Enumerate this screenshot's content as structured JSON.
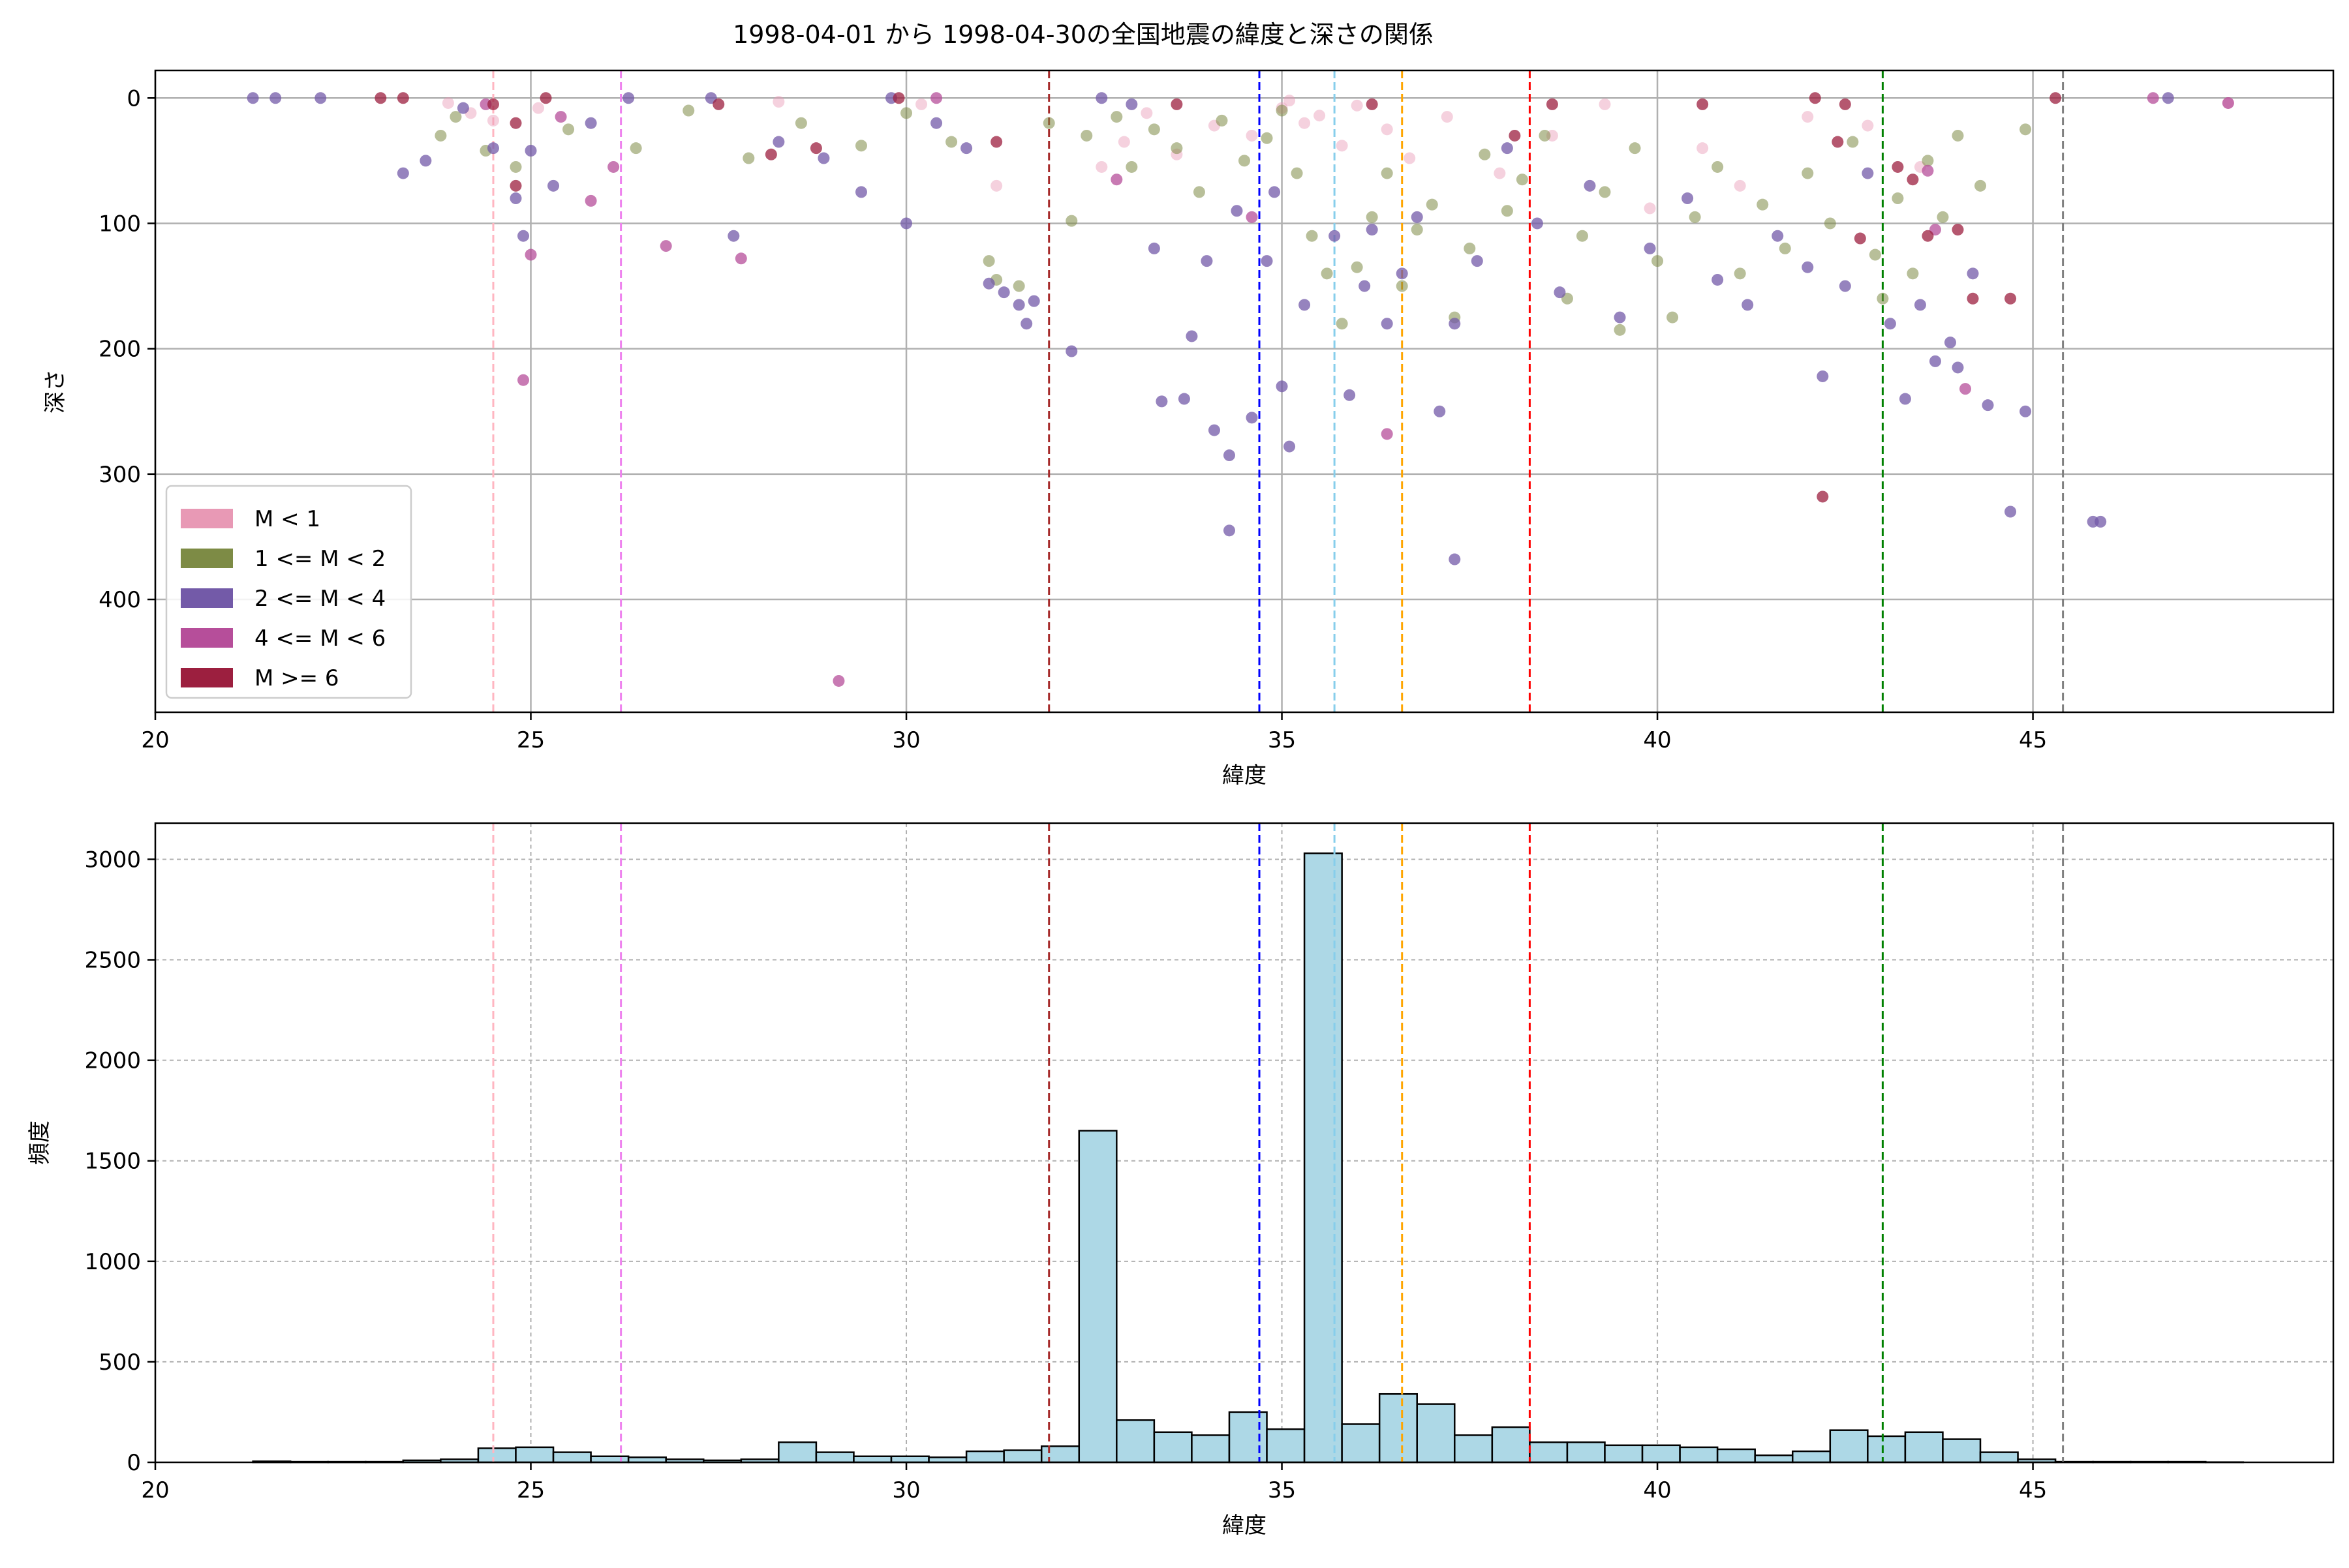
{
  "chart_data": [
    {
      "type": "scatter",
      "title": "1998-04-01 から 1998-04-30の全国地震の緯度と深さの関係",
      "xlabel": "緯度",
      "ylabel": "深さ",
      "xlim": [
        20,
        49
      ],
      "ylim": [
        490,
        -22
      ],
      "y_inverted": true,
      "grid": true,
      "legend_placement": "lower-left",
      "x_ticks": [
        20,
        25,
        30,
        35,
        40,
        45
      ],
      "y_ticks": [
        0,
        100,
        200,
        300,
        400
      ],
      "legend": [
        {
          "label": "M < 1",
          "color": "#e899b5"
        },
        {
          "label": "1 <= M < 2",
          "color": "#7d8b45"
        },
        {
          "label": "2 <= M < 4",
          "color": "#735aa8"
        },
        {
          "label": "4 <= M < 6",
          "color": "#b64e9a"
        },
        {
          "label": "M >= 6",
          "color": "#9c1f3f"
        }
      ],
      "vlines": [
        {
          "x": 24.5,
          "color": "#ffb6c1"
        },
        {
          "x": 26.2,
          "color": "#ee82ee"
        },
        {
          "x": 31.9,
          "color": "#a52a2a"
        },
        {
          "x": 34.7,
          "color": "#0000ff"
        },
        {
          "x": 35.7,
          "color": "#87ceeb"
        },
        {
          "x": 36.6,
          "color": "#ffa500"
        },
        {
          "x": 38.3,
          "color": "#ff0000"
        },
        {
          "x": 43.0,
          "color": "#008000"
        },
        {
          "x": 45.4,
          "color": "#808080"
        }
      ],
      "series": [
        {
          "name": "M < 1",
          "color": "#e899b5",
          "points": [
            [
              23.9,
              4
            ],
            [
              24.2,
              12
            ],
            [
              24.5,
              18
            ],
            [
              25.1,
              8
            ],
            [
              28.3,
              3
            ],
            [
              30.2,
              5
            ],
            [
              31.2,
              70
            ],
            [
              32.6,
              55
            ],
            [
              32.9,
              35
            ],
            [
              33.2,
              12
            ],
            [
              33.6,
              45
            ],
            [
              34.1,
              22
            ],
            [
              34.6,
              30
            ],
            [
              35.0,
              8
            ],
            [
              35.1,
              2
            ],
            [
              35.3,
              20
            ],
            [
              35.5,
              14
            ],
            [
              35.8,
              38
            ],
            [
              36.0,
              6
            ],
            [
              36.4,
              25
            ],
            [
              36.7,
              48
            ],
            [
              37.2,
              15
            ],
            [
              37.9,
              60
            ],
            [
              38.6,
              30
            ],
            [
              39.3,
              5
            ],
            [
              39.9,
              88
            ],
            [
              40.6,
              40
            ],
            [
              41.1,
              70
            ],
            [
              42.0,
              15
            ],
            [
              42.8,
              22
            ],
            [
              43.5,
              55
            ],
            [
              47.6,
              4
            ]
          ]
        },
        {
          "name": "1 <= M < 2",
          "color": "#7d8b45",
          "points": [
            [
              23.8,
              30
            ],
            [
              24.0,
              15
            ],
            [
              24.4,
              42
            ],
            [
              24.8,
              55
            ],
            [
              25.5,
              25
            ],
            [
              26.4,
              40
            ],
            [
              27.1,
              10
            ],
            [
              27.9,
              48
            ],
            [
              28.6,
              20
            ],
            [
              29.4,
              38
            ],
            [
              30.0,
              12
            ],
            [
              30.6,
              35
            ],
            [
              31.1,
              130
            ],
            [
              31.2,
              145
            ],
            [
              31.5,
              150
            ],
            [
              31.9,
              20
            ],
            [
              32.2,
              98
            ],
            [
              32.4,
              30
            ],
            [
              32.8,
              15
            ],
            [
              33.0,
              55
            ],
            [
              33.3,
              25
            ],
            [
              33.6,
              40
            ],
            [
              33.9,
              75
            ],
            [
              34.2,
              18
            ],
            [
              34.5,
              50
            ],
            [
              34.8,
              32
            ],
            [
              35.0,
              10
            ],
            [
              35.2,
              60
            ],
            [
              35.4,
              110
            ],
            [
              35.6,
              140
            ],
            [
              35.8,
              180
            ],
            [
              36.0,
              135
            ],
            [
              36.2,
              95
            ],
            [
              36.4,
              60
            ],
            [
              36.6,
              150
            ],
            [
              36.8,
              105
            ],
            [
              37.0,
              85
            ],
            [
              37.3,
              175
            ],
            [
              37.5,
              120
            ],
            [
              37.7,
              45
            ],
            [
              38.0,
              90
            ],
            [
              38.2,
              65
            ],
            [
              38.5,
              30
            ],
            [
              38.8,
              160
            ],
            [
              39.0,
              110
            ],
            [
              39.3,
              75
            ],
            [
              39.5,
              185
            ],
            [
              39.7,
              40
            ],
            [
              40.0,
              130
            ],
            [
              40.2,
              175
            ],
            [
              40.5,
              95
            ],
            [
              40.8,
              55
            ],
            [
              41.1,
              140
            ],
            [
              41.4,
              85
            ],
            [
              41.7,
              120
            ],
            [
              42.0,
              60
            ],
            [
              42.3,
              100
            ],
            [
              42.6,
              35
            ],
            [
              42.9,
              125
            ],
            [
              43.0,
              160
            ],
            [
              43.2,
              80
            ],
            [
              43.4,
              140
            ],
            [
              43.6,
              50
            ],
            [
              43.8,
              95
            ],
            [
              44.0,
              30
            ],
            [
              44.3,
              70
            ],
            [
              44.9,
              25
            ]
          ]
        },
        {
          "name": "2 <= M < 4",
          "color": "#735aa8",
          "points": [
            [
              21.3,
              0
            ],
            [
              21.6,
              0
            ],
            [
              22.2,
              0
            ],
            [
              23.3,
              60
            ],
            [
              23.6,
              50
            ],
            [
              24.1,
              8
            ],
            [
              24.5,
              40
            ],
            [
              24.8,
              80
            ],
            [
              24.9,
              110
            ],
            [
              25.0,
              42
            ],
            [
              25.3,
              70
            ],
            [
              25.8,
              20
            ],
            [
              26.3,
              0
            ],
            [
              27.4,
              0
            ],
            [
              27.7,
              110
            ],
            [
              28.3,
              35
            ],
            [
              28.9,
              48
            ],
            [
              29.4,
              75
            ],
            [
              29.8,
              0
            ],
            [
              30.0,
              100
            ],
            [
              30.4,
              20
            ],
            [
              30.8,
              40
            ],
            [
              31.1,
              148
            ],
            [
              31.3,
              155
            ],
            [
              31.5,
              165
            ],
            [
              31.6,
              180
            ],
            [
              31.7,
              162
            ],
            [
              32.2,
              202
            ],
            [
              32.6,
              0
            ],
            [
              33.0,
              5
            ],
            [
              33.3,
              120
            ],
            [
              33.4,
              242
            ],
            [
              33.7,
              240
            ],
            [
              33.8,
              190
            ],
            [
              34.0,
              130
            ],
            [
              34.1,
              265
            ],
            [
              34.3,
              345
            ],
            [
              34.3,
              285
            ],
            [
              34.4,
              90
            ],
            [
              34.6,
              255
            ],
            [
              34.8,
              130
            ],
            [
              34.9,
              75
            ],
            [
              35.0,
              230
            ],
            [
              35.1,
              278
            ],
            [
              35.3,
              165
            ],
            [
              35.7,
              110
            ],
            [
              35.9,
              237
            ],
            [
              36.1,
              150
            ],
            [
              36.2,
              105
            ],
            [
              36.4,
              180
            ],
            [
              36.6,
              140
            ],
            [
              36.8,
              95
            ],
            [
              37.1,
              250
            ],
            [
              37.3,
              368
            ],
            [
              37.3,
              180
            ],
            [
              37.6,
              130
            ],
            [
              38.0,
              40
            ],
            [
              38.4,
              100
            ],
            [
              38.7,
              155
            ],
            [
              39.1,
              70
            ],
            [
              39.5,
              175
            ],
            [
              39.9,
              120
            ],
            [
              40.4,
              80
            ],
            [
              40.8,
              145
            ],
            [
              41.2,
              165
            ],
            [
              41.6,
              110
            ],
            [
              42.0,
              135
            ],
            [
              42.2,
              222
            ],
            [
              42.5,
              150
            ],
            [
              42.8,
              60
            ],
            [
              43.1,
              180
            ],
            [
              43.3,
              240
            ],
            [
              43.5,
              165
            ],
            [
              43.7,
              210
            ],
            [
              43.9,
              195
            ],
            [
              44.0,
              215
            ],
            [
              44.2,
              140
            ],
            [
              44.4,
              245
            ],
            [
              44.7,
              330
            ],
            [
              44.9,
              250
            ],
            [
              45.8,
              338
            ],
            [
              45.9,
              338
            ],
            [
              46.8,
              0
            ]
          ]
        },
        {
          "name": "4 <= M < 6",
          "color": "#b64e9a",
          "points": [
            [
              24.4,
              5
            ],
            [
              24.9,
              225
            ],
            [
              25.0,
              125
            ],
            [
              25.4,
              15
            ],
            [
              25.8,
              82
            ],
            [
              26.1,
              55
            ],
            [
              26.8,
              118
            ],
            [
              27.8,
              128
            ],
            [
              29.1,
              465
            ],
            [
              30.4,
              0
            ],
            [
              32.8,
              65
            ],
            [
              34.6,
              95
            ],
            [
              36.4,
              268
            ],
            [
              43.6,
              58
            ],
            [
              43.7,
              105
            ],
            [
              44.1,
              232
            ],
            [
              46.6,
              0
            ],
            [
              47.6,
              4
            ]
          ]
        },
        {
          "name": "M >= 6",
          "color": "#9c1f3f",
          "points": [
            [
              23.0,
              0
            ],
            [
              23.3,
              0
            ],
            [
              24.5,
              5
            ],
            [
              24.8,
              20
            ],
            [
              24.8,
              70
            ],
            [
              25.2,
              0
            ],
            [
              27.5,
              5
            ],
            [
              28.2,
              45
            ],
            [
              28.8,
              40
            ],
            [
              29.9,
              0
            ],
            [
              31.2,
              35
            ],
            [
              33.6,
              5
            ],
            [
              36.2,
              5
            ],
            [
              38.1,
              30
            ],
            [
              38.6,
              5
            ],
            [
              40.6,
              5
            ],
            [
              42.1,
              0
            ],
            [
              42.2,
              318
            ],
            [
              42.4,
              35
            ],
            [
              42.5,
              5
            ],
            [
              42.7,
              112
            ],
            [
              43.2,
              55
            ],
            [
              43.4,
              65
            ],
            [
              43.6,
              110
            ],
            [
              44.0,
              105
            ],
            [
              44.2,
              160
            ],
            [
              44.7,
              160
            ],
            [
              45.3,
              0
            ]
          ]
        }
      ]
    },
    {
      "type": "bar",
      "subtype": "histogram",
      "xlabel": "緯度",
      "ylabel": "頻度",
      "xlim": [
        20,
        49
      ],
      "ylim": [
        0,
        3180
      ],
      "grid": true,
      "x_ticks": [
        20,
        25,
        30,
        35,
        40,
        45
      ],
      "y_ticks": [
        0,
        500,
        1000,
        1500,
        2000,
        2500,
        3000
      ],
      "bar_color": "#add8e6",
      "bin_start": 21.3,
      "bin_width": 0.5,
      "values": [
        5,
        3,
        3,
        3,
        10,
        15,
        70,
        75,
        50,
        30,
        25,
        15,
        10,
        15,
        100,
        50,
        30,
        30,
        25,
        55,
        60,
        80,
        1650,
        210,
        150,
        135,
        250,
        165,
        3030,
        190,
        340,
        290,
        135,
        175,
        100,
        100,
        85,
        85,
        75,
        65,
        35,
        55,
        160,
        130,
        150,
        115,
        50,
        15,
        3,
        3,
        3,
        3,
        1
      ],
      "vlines": [
        {
          "x": 24.5,
          "color": "#ffb6c1"
        },
        {
          "x": 26.2,
          "color": "#ee82ee"
        },
        {
          "x": 31.9,
          "color": "#a52a2a"
        },
        {
          "x": 34.7,
          "color": "#0000ff"
        },
        {
          "x": 35.7,
          "color": "#87ceeb"
        },
        {
          "x": 36.6,
          "color": "#ffa500"
        },
        {
          "x": 38.3,
          "color": "#ff0000"
        },
        {
          "x": 43.0,
          "color": "#008000"
        },
        {
          "x": 45.4,
          "color": "#808080"
        }
      ]
    }
  ]
}
